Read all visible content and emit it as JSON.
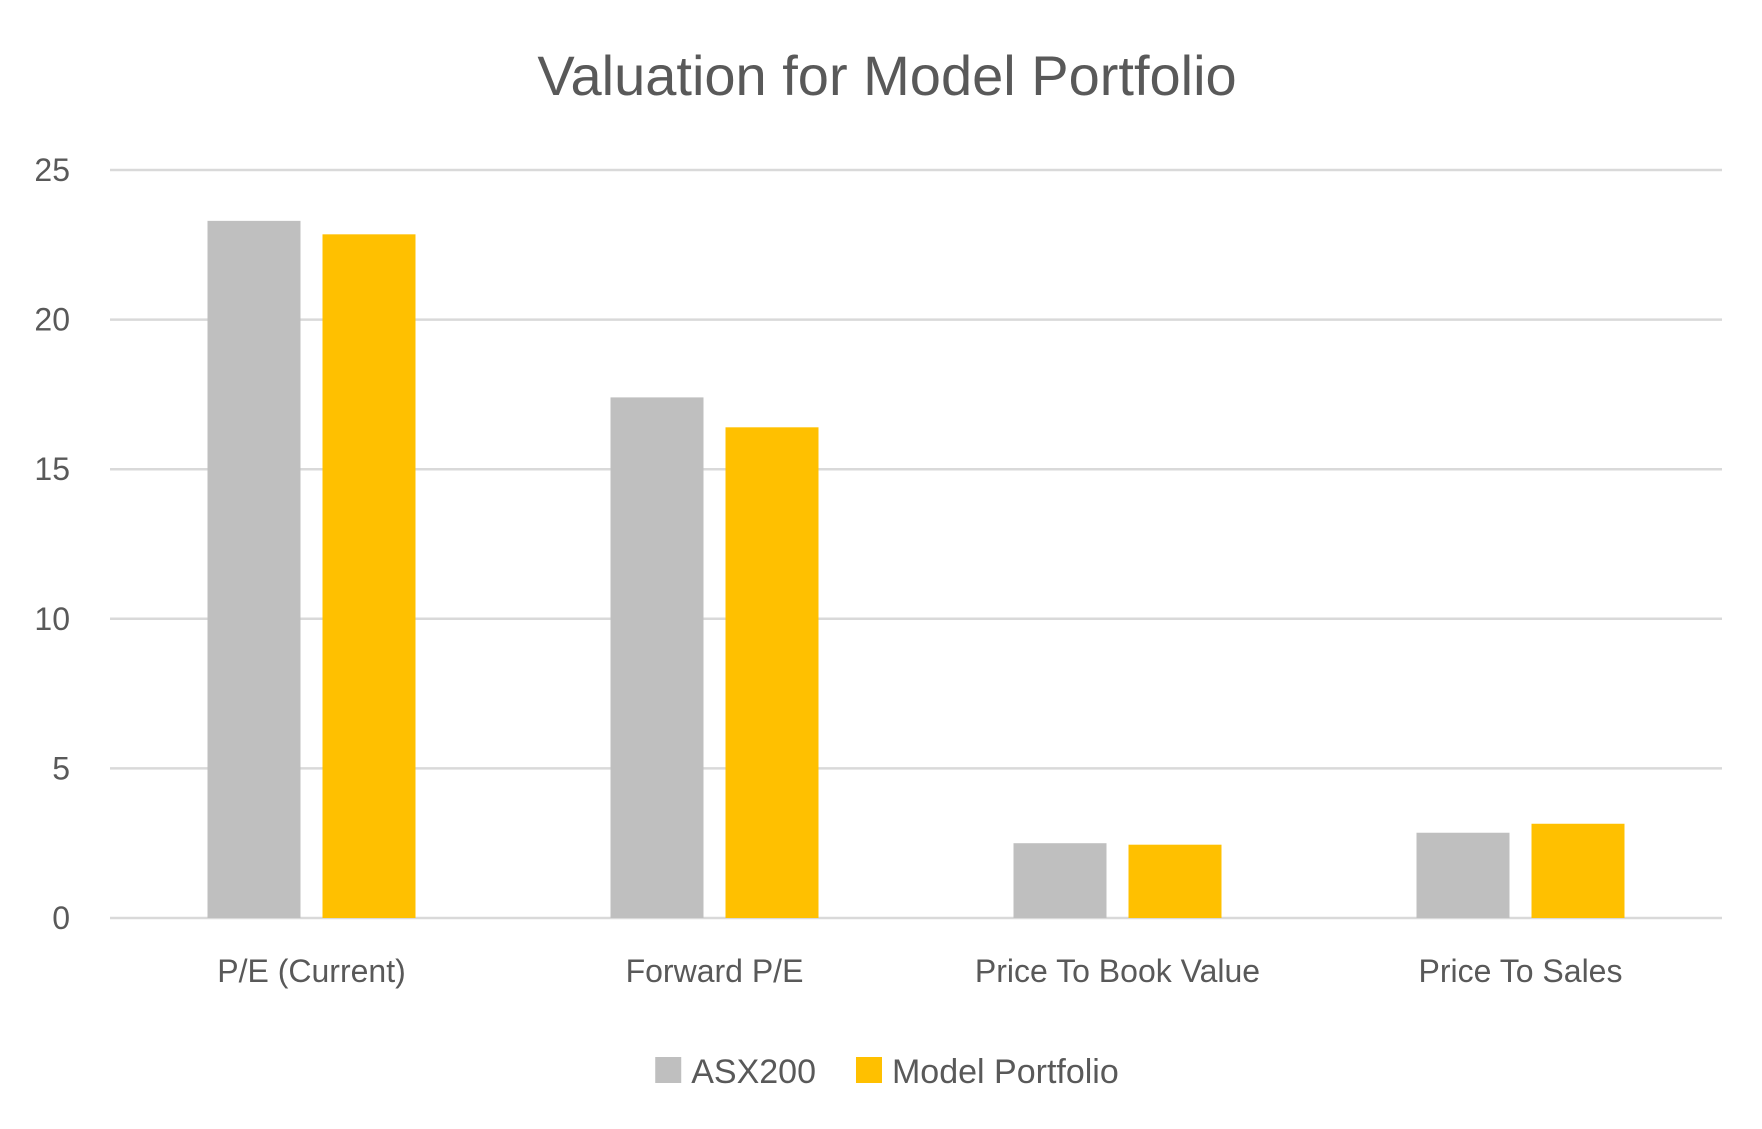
{
  "chart_data": {
    "type": "bar",
    "title": "Valuation for Model Portfolio",
    "xlabel": "",
    "ylabel": "",
    "categories": [
      "P/E (Current)",
      "Forward P/E",
      "Price To Book Value",
      "Price To Sales"
    ],
    "series": [
      {
        "name": "ASX200",
        "color": "#BFBFBF",
        "values": [
          23.3,
          17.4,
          2.5,
          2.85
        ]
      },
      {
        "name": "Model Portfolio",
        "color": "#FFC000",
        "values": [
          22.85,
          16.4,
          2.45,
          3.15
        ]
      }
    ],
    "ylim": [
      0,
      25
    ],
    "yticks": [
      0,
      5,
      10,
      15,
      20,
      25
    ],
    "grid": true,
    "legend_position": "bottom"
  }
}
